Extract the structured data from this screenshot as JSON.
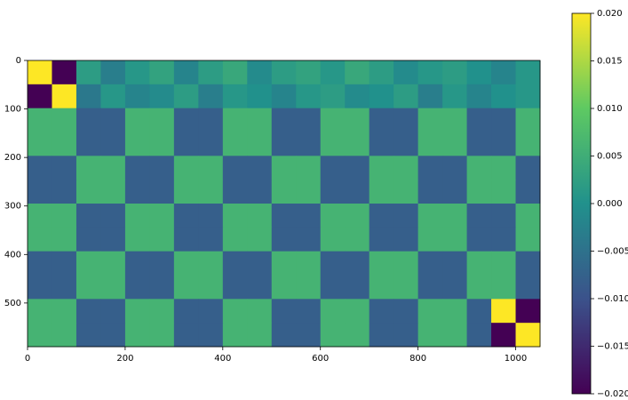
{
  "chart_data": {
    "type": "heatmap",
    "xlim": [
      0,
      1050
    ],
    "ylim": [
      590,
      0
    ],
    "xticks": [
      0,
      200,
      400,
      600,
      800,
      1000
    ],
    "yticks": [
      0,
      100,
      200,
      300,
      400,
      500
    ],
    "colormap": "viridis",
    "clim": [
      -0.02,
      0.02
    ],
    "cticks": [
      {
        "value": -0.02,
        "label": "−0.020"
      },
      {
        "value": -0.015,
        "label": "−0.015"
      },
      {
        "value": -0.01,
        "label": "−0.010"
      },
      {
        "value": -0.005,
        "label": "−0.005"
      },
      {
        "value": 0,
        "label": "0.000"
      },
      {
        "value": 0.005,
        "label": "0.005"
      },
      {
        "value": 0.01,
        "label": "0.010"
      },
      {
        "value": 0.015,
        "label": "0.015"
      },
      {
        "value": 0.02,
        "label": "0.020"
      }
    ],
    "z": [
      [
        0.02,
        -0.02,
        0.002,
        -0.003,
        0.001,
        0.003,
        -0.002,
        0.002,
        0.004,
        -0.001,
        0.002,
        0.003,
        0.001,
        0.004,
        0.002,
        -0.001,
        0.001,
        0.002,
        0.0,
        -0.002,
        0.001
      ],
      [
        -0.02,
        0.02,
        -0.004,
        0.001,
        -0.002,
        -0.001,
        0.002,
        -0.003,
        0.001,
        0.0,
        -0.002,
        0.001,
        0.002,
        -0.001,
        0.0,
        0.002,
        -0.003,
        0.001,
        -0.002,
        0.0,
        0.001
      ],
      [
        0.006,
        0.006,
        -0.008,
        -0.008,
        0.006,
        0.006,
        -0.008,
        -0.008,
        0.006,
        0.006,
        -0.008,
        -0.008,
        0.006,
        0.006,
        -0.008,
        -0.008,
        0.006,
        0.006,
        -0.008,
        -0.008,
        0.006
      ],
      [
        0.006,
        0.006,
        -0.008,
        -0.008,
        0.006,
        0.006,
        -0.008,
        -0.008,
        0.006,
        0.006,
        -0.008,
        -0.008,
        0.006,
        0.006,
        -0.008,
        -0.008,
        0.006,
        0.006,
        -0.008,
        -0.008,
        0.006
      ],
      [
        -0.008,
        -0.008,
        0.006,
        0.006,
        -0.008,
        -0.008,
        0.006,
        0.006,
        -0.008,
        -0.008,
        0.006,
        0.006,
        -0.008,
        -0.008,
        0.006,
        0.006,
        -0.008,
        -0.008,
        0.006,
        0.006,
        -0.008
      ],
      [
        -0.008,
        -0.008,
        0.006,
        0.006,
        -0.008,
        -0.008,
        0.006,
        0.006,
        -0.008,
        -0.008,
        0.006,
        0.006,
        -0.008,
        -0.008,
        0.006,
        0.006,
        -0.008,
        -0.008,
        0.006,
        0.006,
        -0.008
      ],
      [
        0.006,
        0.006,
        -0.008,
        -0.008,
        0.006,
        0.006,
        -0.008,
        -0.008,
        0.006,
        0.006,
        -0.008,
        -0.008,
        0.006,
        0.006,
        -0.008,
        -0.008,
        0.006,
        0.006,
        -0.008,
        -0.008,
        0.006
      ],
      [
        0.006,
        0.006,
        -0.008,
        -0.008,
        0.006,
        0.006,
        -0.008,
        -0.008,
        0.006,
        0.006,
        -0.008,
        -0.008,
        0.006,
        0.006,
        -0.008,
        -0.008,
        0.006,
        0.006,
        -0.008,
        -0.008,
        0.006
      ],
      [
        -0.008,
        -0.008,
        0.006,
        0.006,
        -0.008,
        -0.008,
        0.006,
        0.006,
        -0.008,
        -0.008,
        0.006,
        0.006,
        -0.008,
        -0.008,
        0.006,
        0.006,
        -0.008,
        -0.008,
        0.006,
        0.006,
        -0.008
      ],
      [
        -0.008,
        -0.008,
        0.006,
        0.006,
        -0.008,
        -0.008,
        0.006,
        0.006,
        -0.008,
        -0.008,
        0.006,
        0.006,
        -0.008,
        -0.008,
        0.006,
        0.006,
        -0.008,
        -0.008,
        0.006,
        0.006,
        -0.008
      ],
      [
        0.006,
        0.006,
        -0.008,
        -0.008,
        0.006,
        0.006,
        -0.008,
        -0.008,
        0.006,
        0.006,
        -0.008,
        -0.008,
        0.006,
        0.006,
        -0.008,
        -0.008,
        0.006,
        0.006,
        -0.008,
        0.02,
        -0.02
      ],
      [
        0.006,
        0.006,
        -0.008,
        -0.008,
        0.006,
        0.006,
        -0.008,
        -0.008,
        0.006,
        0.006,
        -0.008,
        -0.008,
        0.006,
        0.006,
        -0.008,
        -0.008,
        0.006,
        0.006,
        -0.008,
        -0.02,
        0.02
      ]
    ]
  }
}
